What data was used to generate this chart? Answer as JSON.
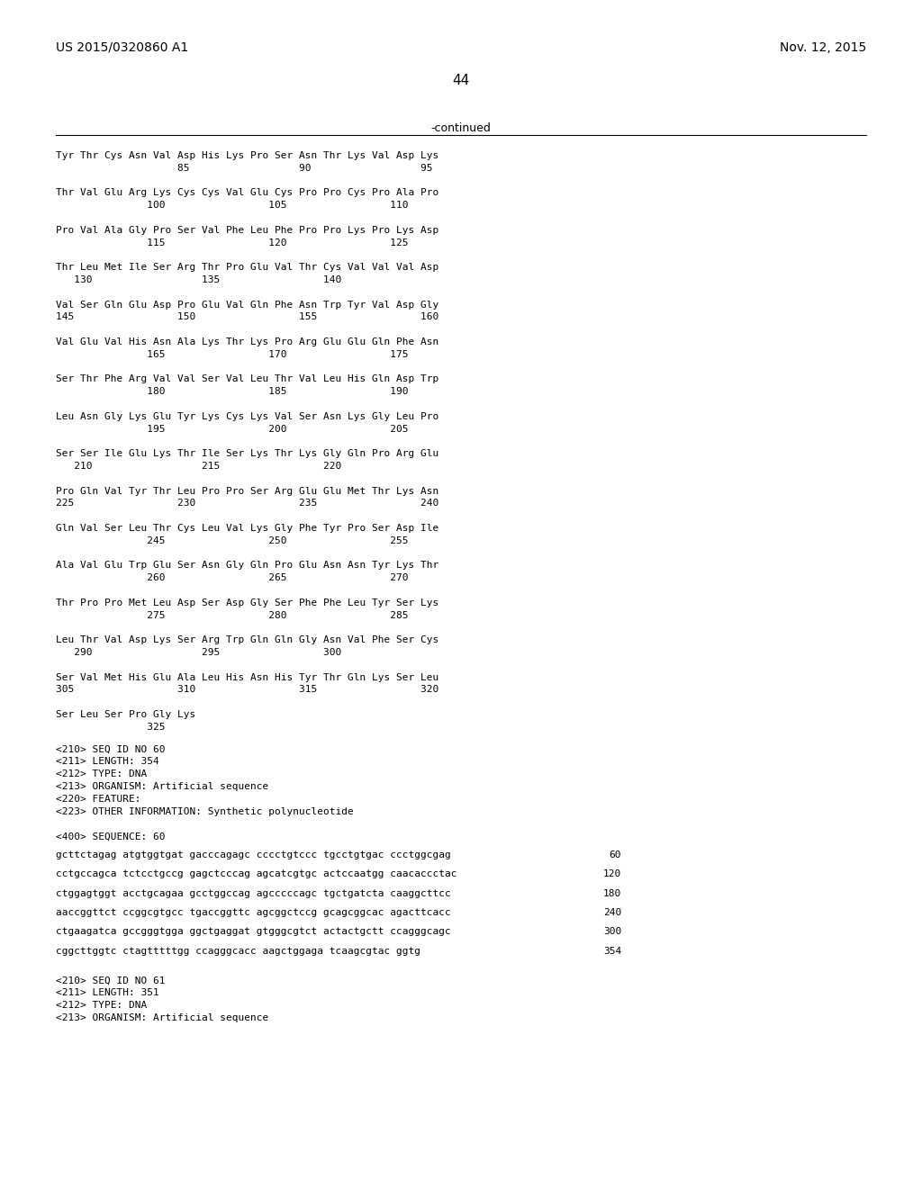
{
  "page_number": "44",
  "patent_number": "US 2015/0320860 A1",
  "patent_date": "Nov. 12, 2015",
  "continued_label": "-continued",
  "background_color": "#ffffff",
  "text_color": "#000000",
  "sequence_lines": [
    "Tyr Thr Cys Asn Val Asp His Lys Pro Ser Asn Thr Lys Val Asp Lys",
    "                    85                  90                  95",
    "",
    "Thr Val Glu Arg Lys Cys Cys Val Glu Cys Pro Pro Cys Pro Ala Pro",
    "               100                 105                 110",
    "",
    "Pro Val Ala Gly Pro Ser Val Phe Leu Phe Pro Pro Lys Pro Lys Asp",
    "               115                 120                 125",
    "",
    "Thr Leu Met Ile Ser Arg Thr Pro Glu Val Thr Cys Val Val Val Asp",
    "   130                  135                 140",
    "",
    "Val Ser Gln Glu Asp Pro Glu Val Gln Phe Asn Trp Tyr Val Asp Gly",
    "145                 150                 155                 160",
    "",
    "Val Glu Val His Asn Ala Lys Thr Lys Pro Arg Glu Glu Gln Phe Asn",
    "               165                 170                 175",
    "",
    "Ser Thr Phe Arg Val Val Ser Val Leu Thr Val Leu His Gln Asp Trp",
    "               180                 185                 190",
    "",
    "Leu Asn Gly Lys Glu Tyr Lys Cys Lys Val Ser Asn Lys Gly Leu Pro",
    "               195                 200                 205",
    "",
    "Ser Ser Ile Glu Lys Thr Ile Ser Lys Thr Lys Gly Gln Pro Arg Glu",
    "   210                  215                 220",
    "",
    "Pro Gln Val Tyr Thr Leu Pro Pro Ser Arg Glu Glu Met Thr Lys Asn",
    "225                 230                 235                 240",
    "",
    "Gln Val Ser Leu Thr Cys Leu Val Lys Gly Phe Tyr Pro Ser Asp Ile",
    "               245                 250                 255",
    "",
    "Ala Val Glu Trp Glu Ser Asn Gly Gln Pro Glu Asn Asn Tyr Lys Thr",
    "               260                 265                 270",
    "",
    "Thr Pro Pro Met Leu Asp Ser Asp Gly Ser Phe Phe Leu Tyr Ser Lys",
    "               275                 280                 285",
    "",
    "Leu Thr Val Asp Lys Ser Arg Trp Gln Gln Gly Asn Val Phe Ser Cys",
    "   290                  295                 300",
    "",
    "Ser Val Met His Glu Ala Leu His Asn His Tyr Thr Gln Lys Ser Leu",
    "305                 310                 315                 320",
    "",
    "Ser Leu Ser Pro Gly Lys",
    "               325"
  ],
  "metadata_block": [
    "<210> SEQ ID NO 60",
    "<211> LENGTH: 354",
    "<212> TYPE: DNA",
    "<213> ORGANISM: Artificial sequence",
    "<220> FEATURE:",
    "<223> OTHER INFORMATION: Synthetic polynucleotide",
    "",
    "<400> SEQUENCE: 60"
  ],
  "dna_sequences": [
    [
      "gcttctagag atgtggtgat gacccagagc cccctgtccc tgcctgtgac ccctggcgag",
      "60"
    ],
    [
      "cctgccagca tctcctgccg gagctcccag agcatcgtgc actccaatgg caacaccctac",
      "120"
    ],
    [
      "ctggagtggt acctgcagaa gcctggccag agcccccagc tgctgatcta caaggcttcc",
      "180"
    ],
    [
      "aaccggttct ccggcgtgcc tgaccggttc agcggctccg gcagcggcac agacttcacc",
      "240"
    ],
    [
      "ctgaagatca gccgggtgga ggctgaggat gtgggcgtct actactgctt ccagggcagc",
      "300"
    ],
    [
      "cggcttggtc ctagtttttgg ccagggcacc aagctggaga tcaagcgtac ggtg",
      "354"
    ]
  ],
  "metadata_block2": [
    "<210> SEQ ID NO 61",
    "<211> LENGTH: 351",
    "<212> TYPE: DNA",
    "<213> ORGANISM: Artificial sequence"
  ]
}
